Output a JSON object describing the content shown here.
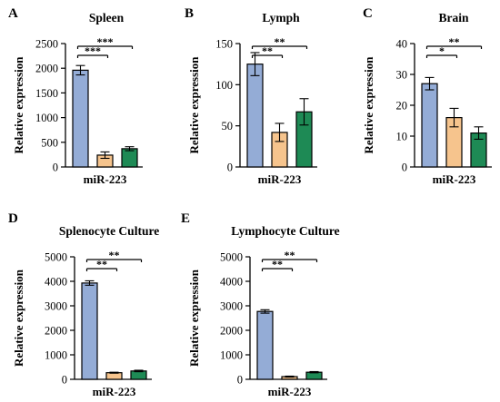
{
  "figure": {
    "colors": [
      "#94acd6",
      "#f6c48d",
      "#1e8a55"
    ],
    "bar_stroke": "#000000"
  },
  "chart_data": [
    {
      "panel": "A",
      "type": "bar",
      "title": "Spleen",
      "xlabel": "miR-223",
      "ylabel": "Relative expression",
      "ylim": [
        0,
        2500
      ],
      "yticks": [
        0,
        500,
        1000,
        1500,
        2000,
        2500
      ],
      "values": [
        1960,
        240,
        370
      ],
      "errors": [
        95,
        65,
        40
      ],
      "significance": [
        {
          "from": 0,
          "to": 1,
          "label": "***"
        },
        {
          "from": 0,
          "to": 2,
          "label": "***"
        }
      ]
    },
    {
      "panel": "B",
      "type": "bar",
      "title": "Lymph",
      "xlabel": "miR-223",
      "ylabel": "Relative expression",
      "ylim": [
        0,
        150
      ],
      "yticks": [
        0,
        50,
        100,
        150
      ],
      "values": [
        125,
        42,
        67
      ],
      "errors": [
        14,
        11,
        16
      ],
      "significance": [
        {
          "from": 0,
          "to": 1,
          "label": "**"
        },
        {
          "from": 0,
          "to": 2,
          "label": "**"
        }
      ]
    },
    {
      "panel": "C",
      "type": "bar",
      "title": "Brain",
      "xlabel": "miR-223",
      "ylabel": "Relative expression",
      "ylim": [
        0,
        40
      ],
      "yticks": [
        0,
        10,
        20,
        30,
        40
      ],
      "values": [
        27,
        16,
        11
      ],
      "errors": [
        2,
        3,
        2
      ],
      "significance": [
        {
          "from": 0,
          "to": 1,
          "label": "*"
        },
        {
          "from": 0,
          "to": 2,
          "label": "**"
        }
      ]
    },
    {
      "panel": "D",
      "type": "bar",
      "title": "Splenocyte Culture",
      "xlabel": "miR-223",
      "ylabel": "Relative expression",
      "ylim": [
        0,
        5000
      ],
      "yticks": [
        0,
        1000,
        2000,
        3000,
        4000,
        5000
      ],
      "values": [
        3930,
        270,
        340
      ],
      "errors": [
        90,
        20,
        30
      ],
      "significance": [
        {
          "from": 0,
          "to": 1,
          "label": "**"
        },
        {
          "from": 0,
          "to": 2,
          "label": "**"
        }
      ]
    },
    {
      "panel": "E",
      "type": "bar",
      "title": "Lymphocyte Culture",
      "xlabel": "miR-223",
      "ylabel": "Relative expression",
      "ylim": [
        0,
        5000
      ],
      "yticks": [
        0,
        1000,
        2000,
        3000,
        4000,
        5000
      ],
      "values": [
        2770,
        110,
        290
      ],
      "errors": [
        70,
        20,
        25
      ],
      "significance": [
        {
          "from": 0,
          "to": 1,
          "label": "**"
        },
        {
          "from": 0,
          "to": 2,
          "label": "**"
        }
      ]
    }
  ]
}
